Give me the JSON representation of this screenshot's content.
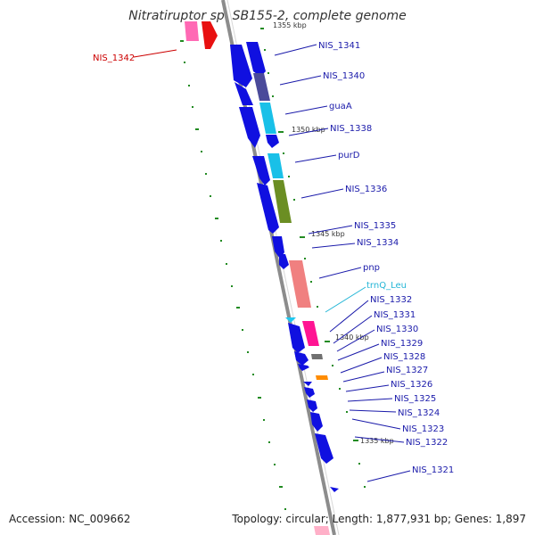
{
  "title": "Nitratiruptor sp. SB155-2, complete genome",
  "footer": {
    "accession": "Accession: NC_009662",
    "summary": "Topology: circular; Length: 1,877,931 bp; Genes: 1,897"
  },
  "scale_labels": [
    "1355 kbp",
    "1350 kbp",
    "1345 kbp",
    "1340 kbp",
    "1335 kbp"
  ],
  "gene_labels": [
    {
      "text": "NIS_1342",
      "color": "#cc0000"
    },
    {
      "text": "NIS_1341",
      "color": "#1a1aaa"
    },
    {
      "text": "NIS_1340",
      "color": "#1a1aaa"
    },
    {
      "text": "guaA",
      "color": "#1a1aaa"
    },
    {
      "text": "NIS_1338",
      "color": "#1a1aaa"
    },
    {
      "text": "purD",
      "color": "#1a1aaa"
    },
    {
      "text": "NIS_1336",
      "color": "#1a1aaa"
    },
    {
      "text": "NIS_1335",
      "color": "#1a1aaa"
    },
    {
      "text": "NIS_1334",
      "color": "#1a1aaa"
    },
    {
      "text": "pnp",
      "color": "#1a1aaa"
    },
    {
      "text": "trnQ_Leu",
      "color": "#22b5d6"
    },
    {
      "text": "NIS_1332",
      "color": "#1a1aaa"
    },
    {
      "text": "NIS_1331",
      "color": "#1a1aaa"
    },
    {
      "text": "NIS_1330",
      "color": "#1a1aaa"
    },
    {
      "text": "NIS_1329",
      "color": "#1a1aaa"
    },
    {
      "text": "NIS_1328",
      "color": "#1a1aaa"
    },
    {
      "text": "NIS_1327",
      "color": "#1a1aaa"
    },
    {
      "text": "NIS_1326",
      "color": "#1a1aaa"
    },
    {
      "text": "NIS_1325",
      "color": "#1a1aaa"
    },
    {
      "text": "NIS_1324",
      "color": "#1a1aaa"
    },
    {
      "text": "NIS_1323",
      "color": "#1a1aaa"
    },
    {
      "text": "NIS_1322",
      "color": "#1a1aaa"
    },
    {
      "text": "NIS_1321",
      "color": "#1a1aaa"
    }
  ],
  "colors": {
    "cds": "#1010e0",
    "cog_blue_dark": "#4a4a9a",
    "cog_cyan": "#19c0e8",
    "cog_olive": "#6b8e23",
    "cog_salmon": "#f08080",
    "cog_pink": "#ff1493",
    "trna": "#1ec8f0",
    "misc_gray": "#707070",
    "misc_orange": "#ff8c00",
    "ticks": "#228b22",
    "backbone": "#8c8c8c"
  }
}
